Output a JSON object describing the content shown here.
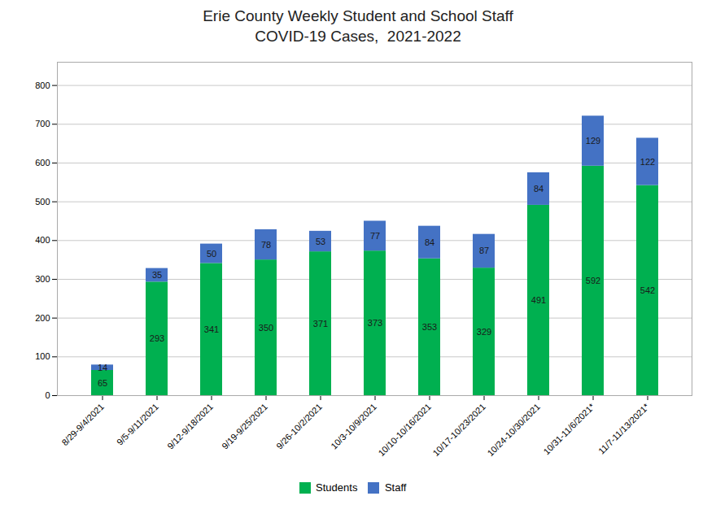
{
  "chart_data": {
    "type": "bar",
    "title": "Erie County Weekly Student and School Staff\nCOVID-19 Cases,  2021-2022",
    "categories": [
      "8/29-9/4/2021",
      "9/5-9/11/2021",
      "9/12-9/18/2021",
      "9/19-9/25/2021",
      "9/26-10/2/2021",
      "10/3-10/9/2021",
      "10/10-10/16/2021",
      "10/17-10/23/2021",
      "10/24-10/30/2021",
      "10/31-11/6/2021*",
      "11/7-11/13/2021*"
    ],
    "series": [
      {
        "name": "Students",
        "color": "#00B050",
        "values": [
          65,
          293,
          341,
          350,
          371,
          373,
          353,
          329,
          491,
          592,
          542
        ]
      },
      {
        "name": "Staff",
        "color": "#4472C4",
        "values": [
          14,
          35,
          50,
          78,
          53,
          77,
          84,
          87,
          84,
          129,
          122
        ]
      }
    ],
    "stacked": true,
    "data_labels": true,
    "ylim": [
      0,
      860
    ],
    "yticks": [
      0,
      100,
      200,
      300,
      400,
      500,
      600,
      700,
      800
    ],
    "grid": true,
    "legend": "bottom"
  }
}
